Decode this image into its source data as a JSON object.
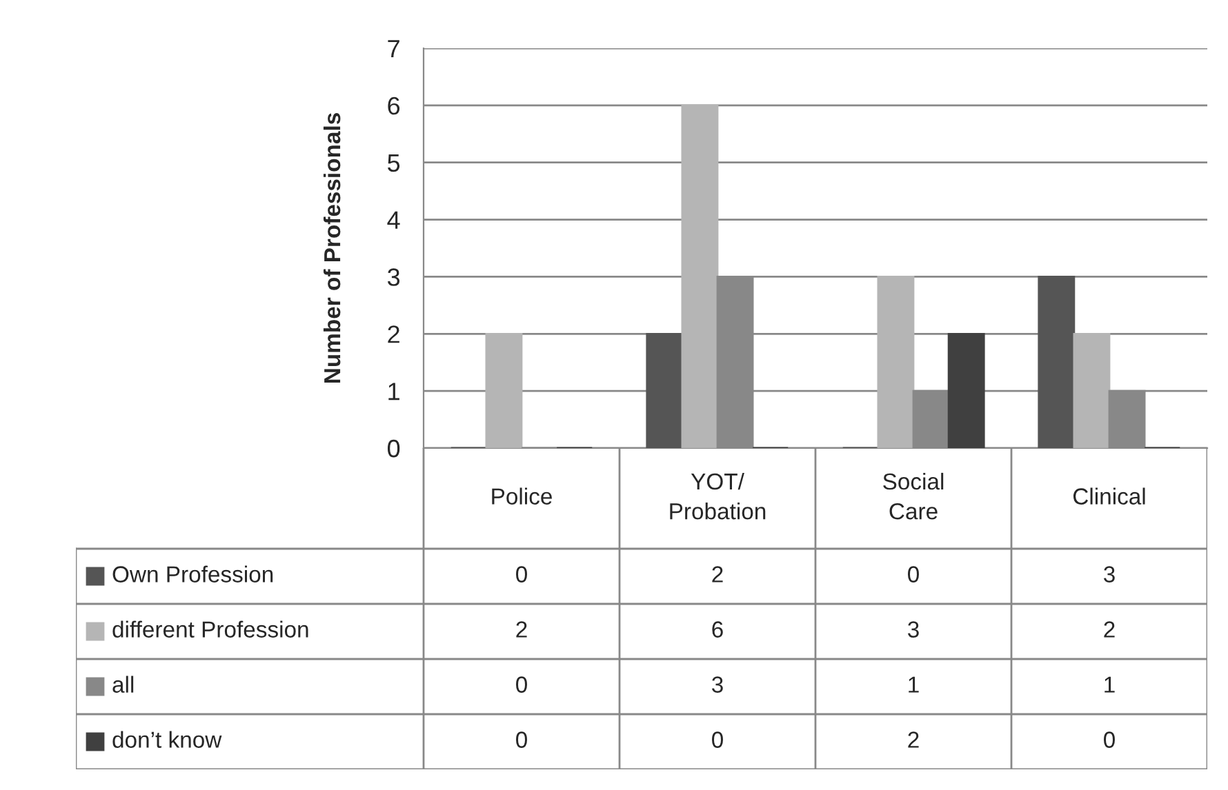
{
  "chart_data": {
    "type": "bar",
    "ylabel": "Number of Professionals",
    "categories": [
      "Police",
      "YOT/\nProbation",
      "Social\nCare",
      "Clinical"
    ],
    "series": [
      {
        "name": "Own Profession",
        "color": "#555555",
        "values": [
          0,
          2,
          0,
          3
        ]
      },
      {
        "name": "different Profession",
        "color": "#b5b5b5",
        "values": [
          2,
          6,
          3,
          2
        ]
      },
      {
        "name": "all",
        "color": "#888888",
        "values": [
          0,
          3,
          1,
          1
        ]
      },
      {
        "name": "don’t know",
        "color": "#404040",
        "values": [
          0,
          0,
          2,
          0
        ]
      }
    ],
    "ylim": [
      0,
      7
    ],
    "yticks": [
      0,
      1,
      2,
      3,
      4,
      5,
      6,
      7
    ],
    "grid": "y",
    "legend": "bottom",
    "data_labels": true
  }
}
